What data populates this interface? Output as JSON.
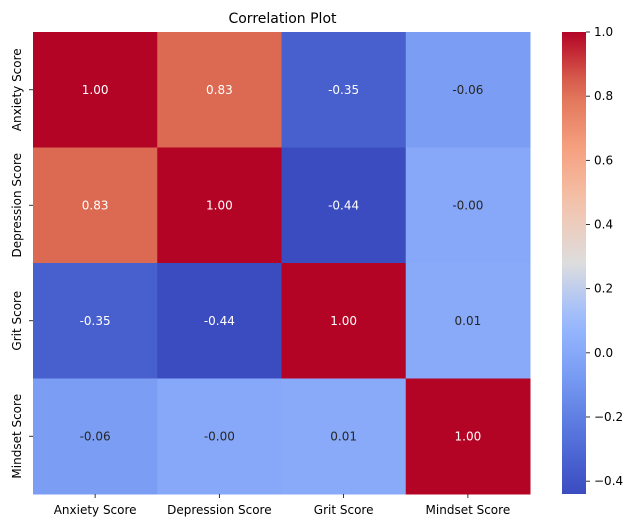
{
  "chart_data": {
    "type": "heatmap",
    "title": "Correlation Plot",
    "xlabel": "",
    "ylabel": "",
    "x_categories": [
      "Anxiety Score",
      "Depression Score",
      "Grit Score",
      "Mindset Score"
    ],
    "y_categories": [
      "Anxiety Score",
      "Depression Score",
      "Grit Score",
      "Mindset Score"
    ],
    "values": [
      [
        1.0,
        0.83,
        -0.35,
        -0.06
      ],
      [
        0.83,
        1.0,
        -0.44,
        -0.0
      ],
      [
        -0.35,
        -0.44,
        1.0,
        0.01
      ],
      [
        -0.06,
        -0.0,
        0.01,
        1.0
      ]
    ],
    "cell_labels": [
      [
        "1.00",
        "0.83",
        "-0.35",
        "-0.06"
      ],
      [
        "0.83",
        "1.00",
        "-0.44",
        "-0.00"
      ],
      [
        "-0.35",
        "-0.44",
        "1.00",
        "0.01"
      ],
      [
        "-0.06",
        "-0.00",
        "0.01",
        "1.00"
      ]
    ],
    "colormap": "coolwarm",
    "color_range": [
      -0.44,
      1.0
    ],
    "colorbar_ticks": [
      1.0,
      0.8,
      0.6,
      0.4,
      0.2,
      0.0,
      -0.2,
      -0.4
    ],
    "colorbar_tick_labels": [
      "1.0",
      "0.8",
      "0.6",
      "0.4",
      "0.2",
      "0.0",
      "−0.2",
      "−0.4"
    ],
    "grid": false,
    "legend": "colorbar-right"
  }
}
